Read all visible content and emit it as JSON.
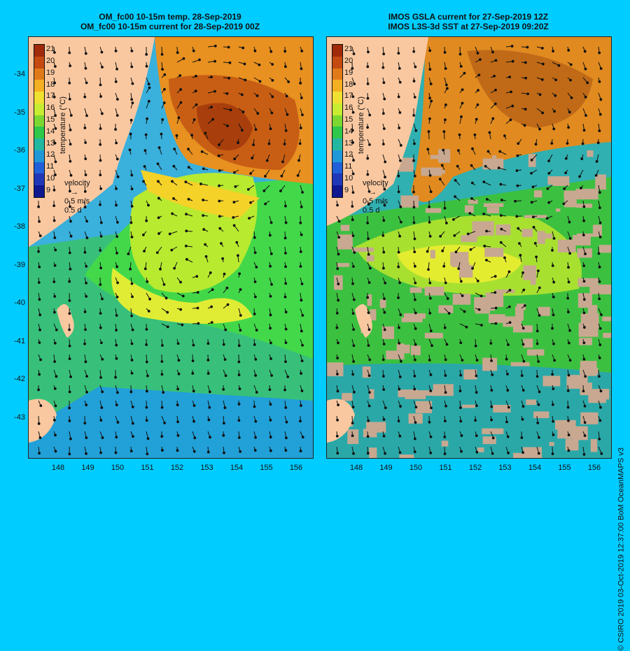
{
  "left_panel": {
    "title_line1": "OM_fc00 10-15m temp. 28-Sep-2019",
    "title_line2": "OM_fc00 10-15m current for 28-Sep-2019 00Z"
  },
  "right_panel": {
    "title_line1": "IMOS GSLA current for 27-Sep-2019 12Z",
    "title_line2": "IMOS L3S-3d SST at 27-Sep-2019 09:20Z"
  },
  "colorbar": {
    "title": "temperature (°C)",
    "labels": [
      "21",
      "20",
      "19",
      "18",
      "17",
      "16",
      "15",
      "14",
      "13",
      "12",
      "11",
      "10",
      "9"
    ],
    "colors": [
      "#a02a0a",
      "#c44a10",
      "#e07a18",
      "#f4b020",
      "#f0e030",
      "#c8ec30",
      "#7cd830",
      "#2ec84a",
      "#22b8a0",
      "#2098d8",
      "#2060d8",
      "#2038b8",
      "#101890"
    ]
  },
  "velocity_key": {
    "label": "velocity",
    "speed": "0.5 m/s",
    "time": "0.5 d"
  },
  "axes": {
    "y_ticks": [
      "-34",
      "-35",
      "-36",
      "-37",
      "-38",
      "-39",
      "-40",
      "-41",
      "-42",
      "-43"
    ],
    "x_ticks": [
      "148",
      "149",
      "150",
      "151",
      "152",
      "153",
      "154",
      "155",
      "156"
    ]
  },
  "credit": "© CSIRO 2019  03-Oct-2019 12:37:00 BoM OceanMAPS v3"
}
